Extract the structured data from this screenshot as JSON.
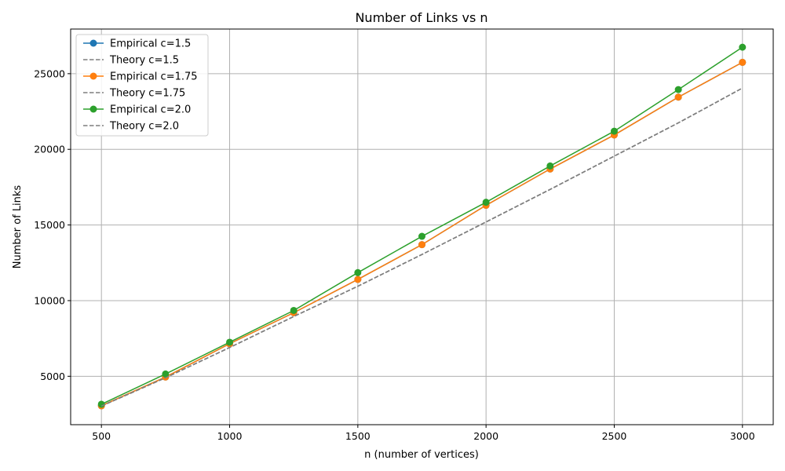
{
  "chart_data": {
    "type": "line",
    "title": "Number of Links vs n",
    "xlabel": "n (number of vertices)",
    "ylabel": "Number of Links",
    "xlim": [
      380,
      3120
    ],
    "ylim": [
      1800,
      27950
    ],
    "xticks": [
      500,
      1000,
      1500,
      2000,
      2500,
      3000
    ],
    "yticks": [
      5000,
      10000,
      15000,
      20000,
      25000
    ],
    "grid": true,
    "legend_position": "top-left",
    "x": [
      500,
      750,
      1000,
      1250,
      1500,
      1750,
      2000,
      2250,
      2500,
      2750,
      3000
    ],
    "series": [
      {
        "name": "Empirical c=1.5",
        "kind": "empirical",
        "color": "#1f77b4",
        "values": [
          3050,
          4950,
          7150,
          9200,
          11400,
          13700,
          16300,
          18700,
          20950,
          23450,
          25750
        ]
      },
      {
        "name": "Theory c=1.5",
        "kind": "theory",
        "color": "#7f7f7f",
        "values": [
          3030,
          4900,
          6900,
          8950,
          10950,
          13050,
          15200,
          17350,
          19550,
          21750,
          24050
        ]
      },
      {
        "name": "Empirical c=1.75",
        "kind": "empirical",
        "color": "#ff7f0e",
        "values": [
          3050,
          4950,
          7150,
          9200,
          11400,
          13700,
          16300,
          18700,
          20950,
          23450,
          25750
        ]
      },
      {
        "name": "Theory c=1.75",
        "kind": "theory",
        "color": "#7f7f7f",
        "values": [
          3030,
          4900,
          6900,
          8950,
          10950,
          13050,
          15200,
          17350,
          19550,
          21750,
          24050
        ]
      },
      {
        "name": "Empirical c=2.0",
        "kind": "empirical",
        "color": "#2ca02c",
        "values": [
          3150,
          5150,
          7250,
          9350,
          11850,
          14250,
          16500,
          18900,
          21200,
          23950,
          26750
        ]
      },
      {
        "name": "Theory c=2.0",
        "kind": "theory",
        "color": "#7f7f7f",
        "values": [
          3030,
          4900,
          6900,
          8950,
          10950,
          13050,
          15200,
          17350,
          19550,
          21750,
          24050
        ]
      }
    ]
  }
}
